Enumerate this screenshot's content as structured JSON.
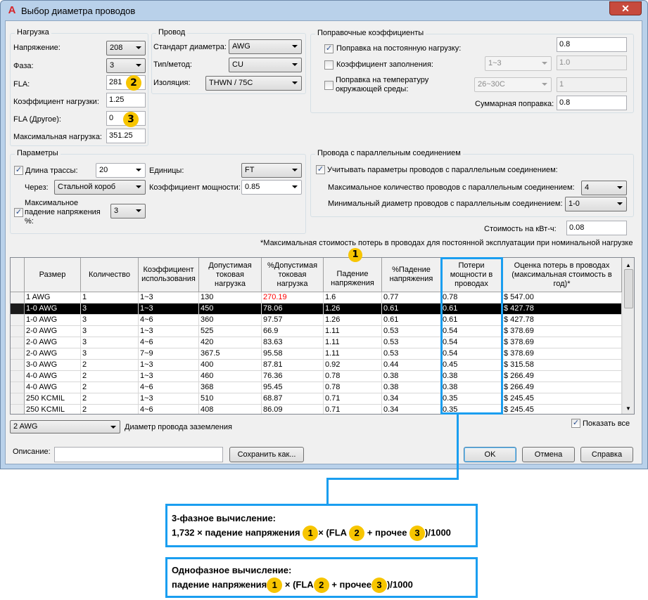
{
  "window": {
    "title": "Выбор диаметра проводов",
    "close": "✕"
  },
  "load": {
    "title": "Нагрузка",
    "voltage_label": "Напряжение:",
    "voltage": "208",
    "phase_label": "Фаза:",
    "phase": "3",
    "fla_label": "FLA:",
    "fla": "281",
    "load_factor_label": "Коэффициент нагрузки:",
    "load_factor": "1.25",
    "fla_other_label": "FLA (Другое):",
    "fla_other": "0",
    "max_load_label": "Максимальная нагрузка:",
    "max_load": "351.25"
  },
  "wire": {
    "title": "Провод",
    "standard_label": "Стандарт диаметра:",
    "standard": "AWG",
    "type_label": "Тип/метод:",
    "type": "CU",
    "insulation_label": "Изоляция:",
    "insulation": "THWN / 75C"
  },
  "correction": {
    "title": "Поправочные коэффициенты",
    "continuous_label": "Поправка на постоянную нагрузку:",
    "continuous_checked": true,
    "continuous": "0.8",
    "fill_label": "Коэффициент заполнения:",
    "fill_checked": false,
    "fill_range": "1~3",
    "fill": "1.0",
    "temp_label1": "Поправка на температуру",
    "temp_label2": "окружающей среды:",
    "temp_checked": false,
    "temp_range": "26~30C",
    "temp": "1",
    "total_label": "Суммарная поправка:",
    "total": "0.8"
  },
  "params": {
    "title": "Параметры",
    "run_length_label": "Длина трассы:",
    "run_length_checked": true,
    "run_length": "20",
    "units_label": "Единицы:",
    "units": "FT",
    "via_label": "Через:",
    "via": "Стальной короб",
    "pf_label": "Коэффициент мощности:",
    "pf": "0.85",
    "max_drop_label1": "Максимальное",
    "max_drop_label2": "падение напряжения",
    "max_drop_label3": "%:",
    "max_drop_checked": true,
    "max_drop": "3"
  },
  "parallel": {
    "title": "Провода с параллельным соединением",
    "consider_label": "Учитывать параметры проводов с параллельным соединением:",
    "consider_checked": true,
    "max_count_label": "Максимальное количество проводов с параллельным соединением:",
    "max_count": "4",
    "min_size_label": "Минимальный диаметр проводов с параллельным соединением:",
    "min_size": "1-0"
  },
  "cost": {
    "label": "Стоимость на кВт-ч:",
    "value": "0.08"
  },
  "note": "*Максимальная стоимость потерь в проводах для постоянной эксплуатации при номинальной нагрузке",
  "table": {
    "columns": [
      "Размер",
      "Количество",
      "Коэффициент использования",
      "Допустимая токовая нагрузка",
      "%Допустимая токовая нагрузка",
      "Падение напряжения",
      "%Падение напряжения",
      "Потери мощности в проводах",
      "Оценка потерь в проводах (максимальная стоимость в год)*"
    ],
    "selected_row": 1,
    "highlight_color": "#ff0000",
    "rows": [
      [
        "1 AWG",
        "1",
        "1~3",
        "130",
        "270.19",
        "1.6",
        "0.77",
        "0.78",
        "$ 547.00"
      ],
      [
        "1-0 AWG",
        "3",
        "1~3",
        "450",
        "78.06",
        "1.26",
        "0.61",
        "0.61",
        "$ 427.78"
      ],
      [
        "1-0 AWG",
        "3",
        "4~6",
        "360",
        "97.57",
        "1.26",
        "0.61",
        "0.61",
        "$ 427.78"
      ],
      [
        "2-0 AWG",
        "3",
        "1~3",
        "525",
        "66.9",
        "1.11",
        "0.53",
        "0.54",
        "$ 378.69"
      ],
      [
        "2-0 AWG",
        "3",
        "4~6",
        "420",
        "83.63",
        "1.11",
        "0.53",
        "0.54",
        "$ 378.69"
      ],
      [
        "2-0 AWG",
        "3",
        "7~9",
        "367.5",
        "95.58",
        "1.11",
        "0.53",
        "0.54",
        "$ 378.69"
      ],
      [
        "3-0 AWG",
        "2",
        "1~3",
        "400",
        "87.81",
        "0.92",
        "0.44",
        "0.45",
        "$ 315.58"
      ],
      [
        "4-0 AWG",
        "2",
        "1~3",
        "460",
        "76.36",
        "0.78",
        "0.38",
        "0.38",
        "$ 266.49"
      ],
      [
        "4-0 AWG",
        "2",
        "4~6",
        "368",
        "95.45",
        "0.78",
        "0.38",
        "0.38",
        "$ 266.49"
      ],
      [
        "250 KCMIL",
        "2",
        "1~3",
        "510",
        "68.87",
        "0.71",
        "0.34",
        "0.35",
        "$ 245.45"
      ],
      [
        "250 KCMIL",
        "2",
        "4~6",
        "408",
        "86.09",
        "0.71",
        "0.34",
        "0.35",
        "$ 245.45"
      ]
    ]
  },
  "ground": {
    "value": "2 AWG",
    "label": "Диаметр провода заземления"
  },
  "show_all": {
    "label": "Показать все",
    "checked": true
  },
  "description": {
    "label": "Описание:",
    "value": ""
  },
  "buttons": {
    "save_as": "Сохранить как...",
    "ok": "OK",
    "cancel": "Отмена",
    "help": "Справка"
  },
  "badges": {
    "one": "1",
    "two": "2",
    "three": "3"
  },
  "annotations": {
    "three_phase": {
      "title": "3-фазное вычисление:",
      "prefix": "1,732 × падение напряжения",
      "times": "× (FLA",
      "plus": "+ прочее",
      "suffix": ")/1000"
    },
    "single_phase": {
      "title": "Однофазное вычисление:",
      "prefix": "падение напряжения",
      "times": "× (FLA",
      "plus": "+ прочее",
      "suffix": ")/1000"
    }
  },
  "colors": {
    "accent": "#1a9ef0",
    "badge": "#f7c500"
  }
}
